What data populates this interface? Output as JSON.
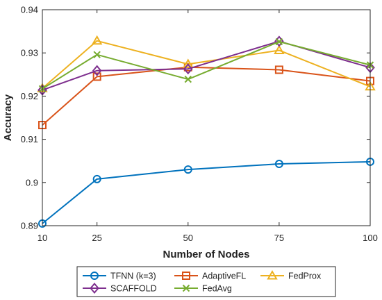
{
  "chart_data": {
    "type": "line",
    "title": "",
    "xlabel": "Number of Nodes",
    "ylabel": "Accuracy",
    "x": [
      10,
      25,
      50,
      75,
      100
    ],
    "x_ticks": [
      10,
      25,
      50,
      75,
      100
    ],
    "x_tick_labels": [
      "10",
      "25",
      "50",
      "75",
      "100"
    ],
    "xlim": [
      10,
      100
    ],
    "ylim": [
      0.89,
      0.94
    ],
    "y_ticks": [
      0.89,
      0.9,
      0.91,
      0.92,
      0.93,
      0.94
    ],
    "y_tick_labels": [
      "0.89",
      "0.9",
      "0.91",
      "0.92",
      "0.93",
      "0.94"
    ],
    "grid": false,
    "legend_position": "bottom",
    "series": [
      {
        "name": "TFNN (k=3)",
        "color": "#0072BD",
        "marker": "circle",
        "values": [
          0.8905,
          0.9008,
          0.903,
          0.9043,
          0.9048
        ]
      },
      {
        "name": "AdaptiveFL",
        "color": "#D95319",
        "marker": "square",
        "values": [
          0.9133,
          0.9245,
          0.9267,
          0.9261,
          0.9235
        ]
      },
      {
        "name": "FedProx",
        "color": "#EDB120",
        "marker": "triangle",
        "values": [
          0.9218,
          0.9328,
          0.9274,
          0.9306,
          0.9222
        ]
      },
      {
        "name": "SCAFFOLD",
        "color": "#7E2F8E",
        "marker": "diamond",
        "values": [
          0.9214,
          0.9259,
          0.9263,
          0.9327,
          0.9266
        ]
      },
      {
        "name": "FedAvg",
        "color": "#77AC30",
        "marker": "x",
        "values": [
          0.9217,
          0.9296,
          0.9239,
          0.9326,
          0.9272
        ]
      }
    ]
  }
}
